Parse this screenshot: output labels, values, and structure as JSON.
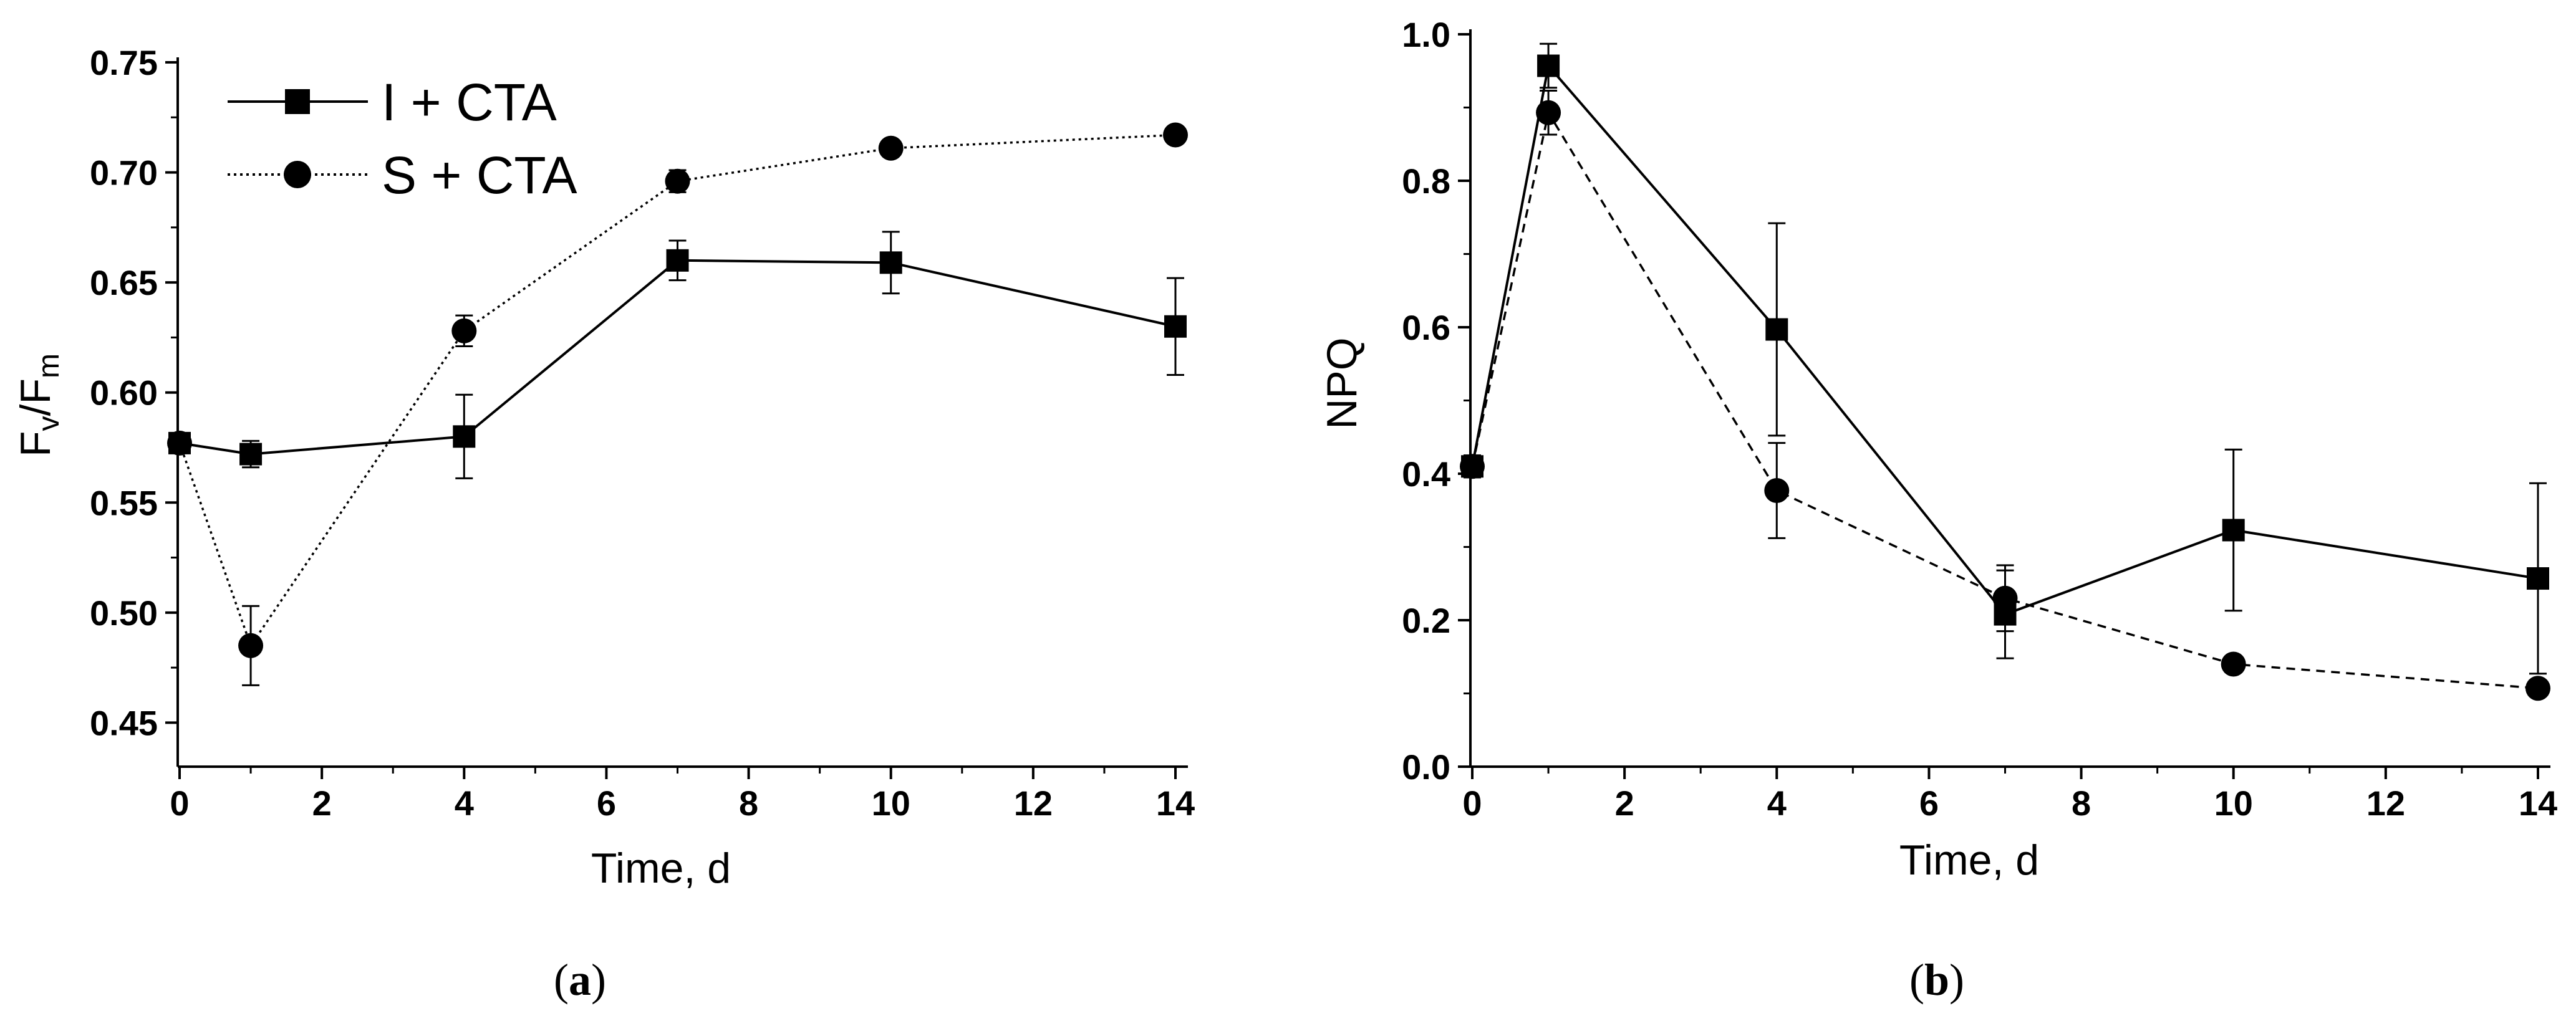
{
  "chart_data": [
    {
      "type": "line",
      "panel_label": "a",
      "xlabel": "Time, d",
      "ylabel_main": "F",
      "ylabel_sub1": "v",
      "ylabel_mid": "/F",
      "ylabel_sub2": "m",
      "xlim": [
        0,
        14
      ],
      "ylim": [
        0.43,
        0.75
      ],
      "xticks": [
        0,
        2,
        4,
        6,
        8,
        10,
        12,
        14
      ],
      "yticks": [
        0.45,
        0.5,
        0.55,
        0.6,
        0.65,
        0.7,
        0.75
      ],
      "x_tick_labels": [
        "0",
        "2",
        "4",
        "6",
        "8",
        "10",
        "12",
        "14"
      ],
      "y_tick_labels": [
        "0.45",
        "0.50",
        "0.55",
        "0.60",
        "0.65",
        "0.70",
        "0.75"
      ],
      "legend_position": "top-left",
      "grid": false,
      "series": [
        {
          "name": "I + CTA",
          "marker": "square",
          "line_style": "solid",
          "x": [
            0,
            1,
            4,
            7,
            10,
            14
          ],
          "y": [
            0.577,
            0.572,
            0.58,
            0.66,
            0.659,
            0.63
          ],
          "error": [
            0.003,
            0.006,
            0.019,
            0.009,
            0.014,
            0.022
          ]
        },
        {
          "name": "S + CTA",
          "marker": "circle",
          "line_style": "dotted",
          "x": [
            0,
            1,
            4,
            7,
            10,
            14
          ],
          "y": [
            0.577,
            0.485,
            0.628,
            0.696,
            0.711,
            0.717
          ],
          "error": [
            0.003,
            0.018,
            0.007,
            0.005,
            0.003,
            0.002
          ]
        }
      ]
    },
    {
      "type": "line",
      "panel_label": "b",
      "xlabel": "Time, d",
      "ylabel": "NPQ",
      "xlim": [
        0,
        14
      ],
      "ylim": [
        0,
        1.0
      ],
      "xticks": [
        0,
        2,
        4,
        6,
        8,
        10,
        12,
        14
      ],
      "yticks": [
        0.0,
        0.2,
        0.4,
        0.6,
        0.8,
        1.0
      ],
      "x_tick_labels": [
        "0",
        "2",
        "4",
        "6",
        "8",
        "10",
        "12",
        "14"
      ],
      "y_tick_labels": [
        "0.0",
        "0.2",
        "0.4",
        "0.6",
        "0.8",
        "1.0"
      ],
      "grid": false,
      "series": [
        {
          "marker": "square",
          "line_style": "solid",
          "x": [
            0,
            1,
            4,
            7,
            10,
            14
          ],
          "y": [
            0.41,
            0.957,
            0.597,
            0.208,
            0.323,
            0.257
          ],
          "error": [
            0.015,
            0.03,
            0.145,
            0.06,
            0.11,
            0.13
          ]
        },
        {
          "marker": "circle",
          "line_style": "dashed",
          "x": [
            0,
            1,
            4,
            7,
            10,
            14
          ],
          "y": [
            0.41,
            0.893,
            0.377,
            0.23,
            0.14,
            0.107
          ],
          "error": [
            0.015,
            0.03,
            0.065,
            0.045,
            0.005,
            0.01
          ]
        }
      ]
    }
  ]
}
